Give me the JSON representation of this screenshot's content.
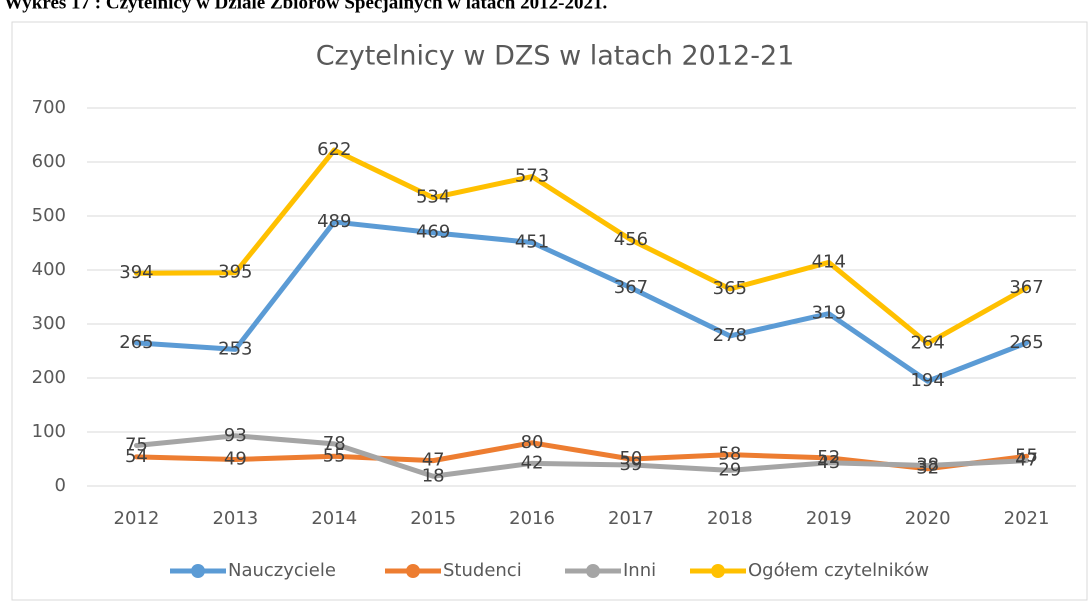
{
  "chart_data": {
    "type": "line",
    "heading": "Wykres 17 : Czytelnicy w Dziale Zbiorów Specjalnych w latach 2012-2021.",
    "title": "Czytelnicy w DZS w latach 2012-21",
    "categories": [
      "2012",
      "2013",
      "2014",
      "2015",
      "2016",
      "2017",
      "2018",
      "2019",
      "2020",
      "2021"
    ],
    "series": [
      {
        "name": "Nauczyciele",
        "color": "#5b9bd5",
        "values": [
          265,
          253,
          489,
          469,
          451,
          367,
          278,
          319,
          194,
          265
        ]
      },
      {
        "name": "Studenci",
        "color": "#ed7d31",
        "values": [
          54,
          49,
          55,
          47,
          80,
          50,
          58,
          52,
          32,
          55
        ]
      },
      {
        "name": "Inni",
        "color": "#a5a5a5",
        "values": [
          75,
          93,
          78,
          18,
          42,
          39,
          29,
          43,
          38,
          47
        ]
      },
      {
        "name": "Ogółem czytelników",
        "color": "#ffc000",
        "values": [
          394,
          395,
          622,
          534,
          573,
          456,
          365,
          414,
          264,
          367
        ]
      }
    ],
    "ylim": [
      0,
      700
    ],
    "yticks": [
      0,
      100,
      200,
      300,
      400,
      500,
      600,
      700
    ],
    "grid": true,
    "legend": "bottom"
  }
}
